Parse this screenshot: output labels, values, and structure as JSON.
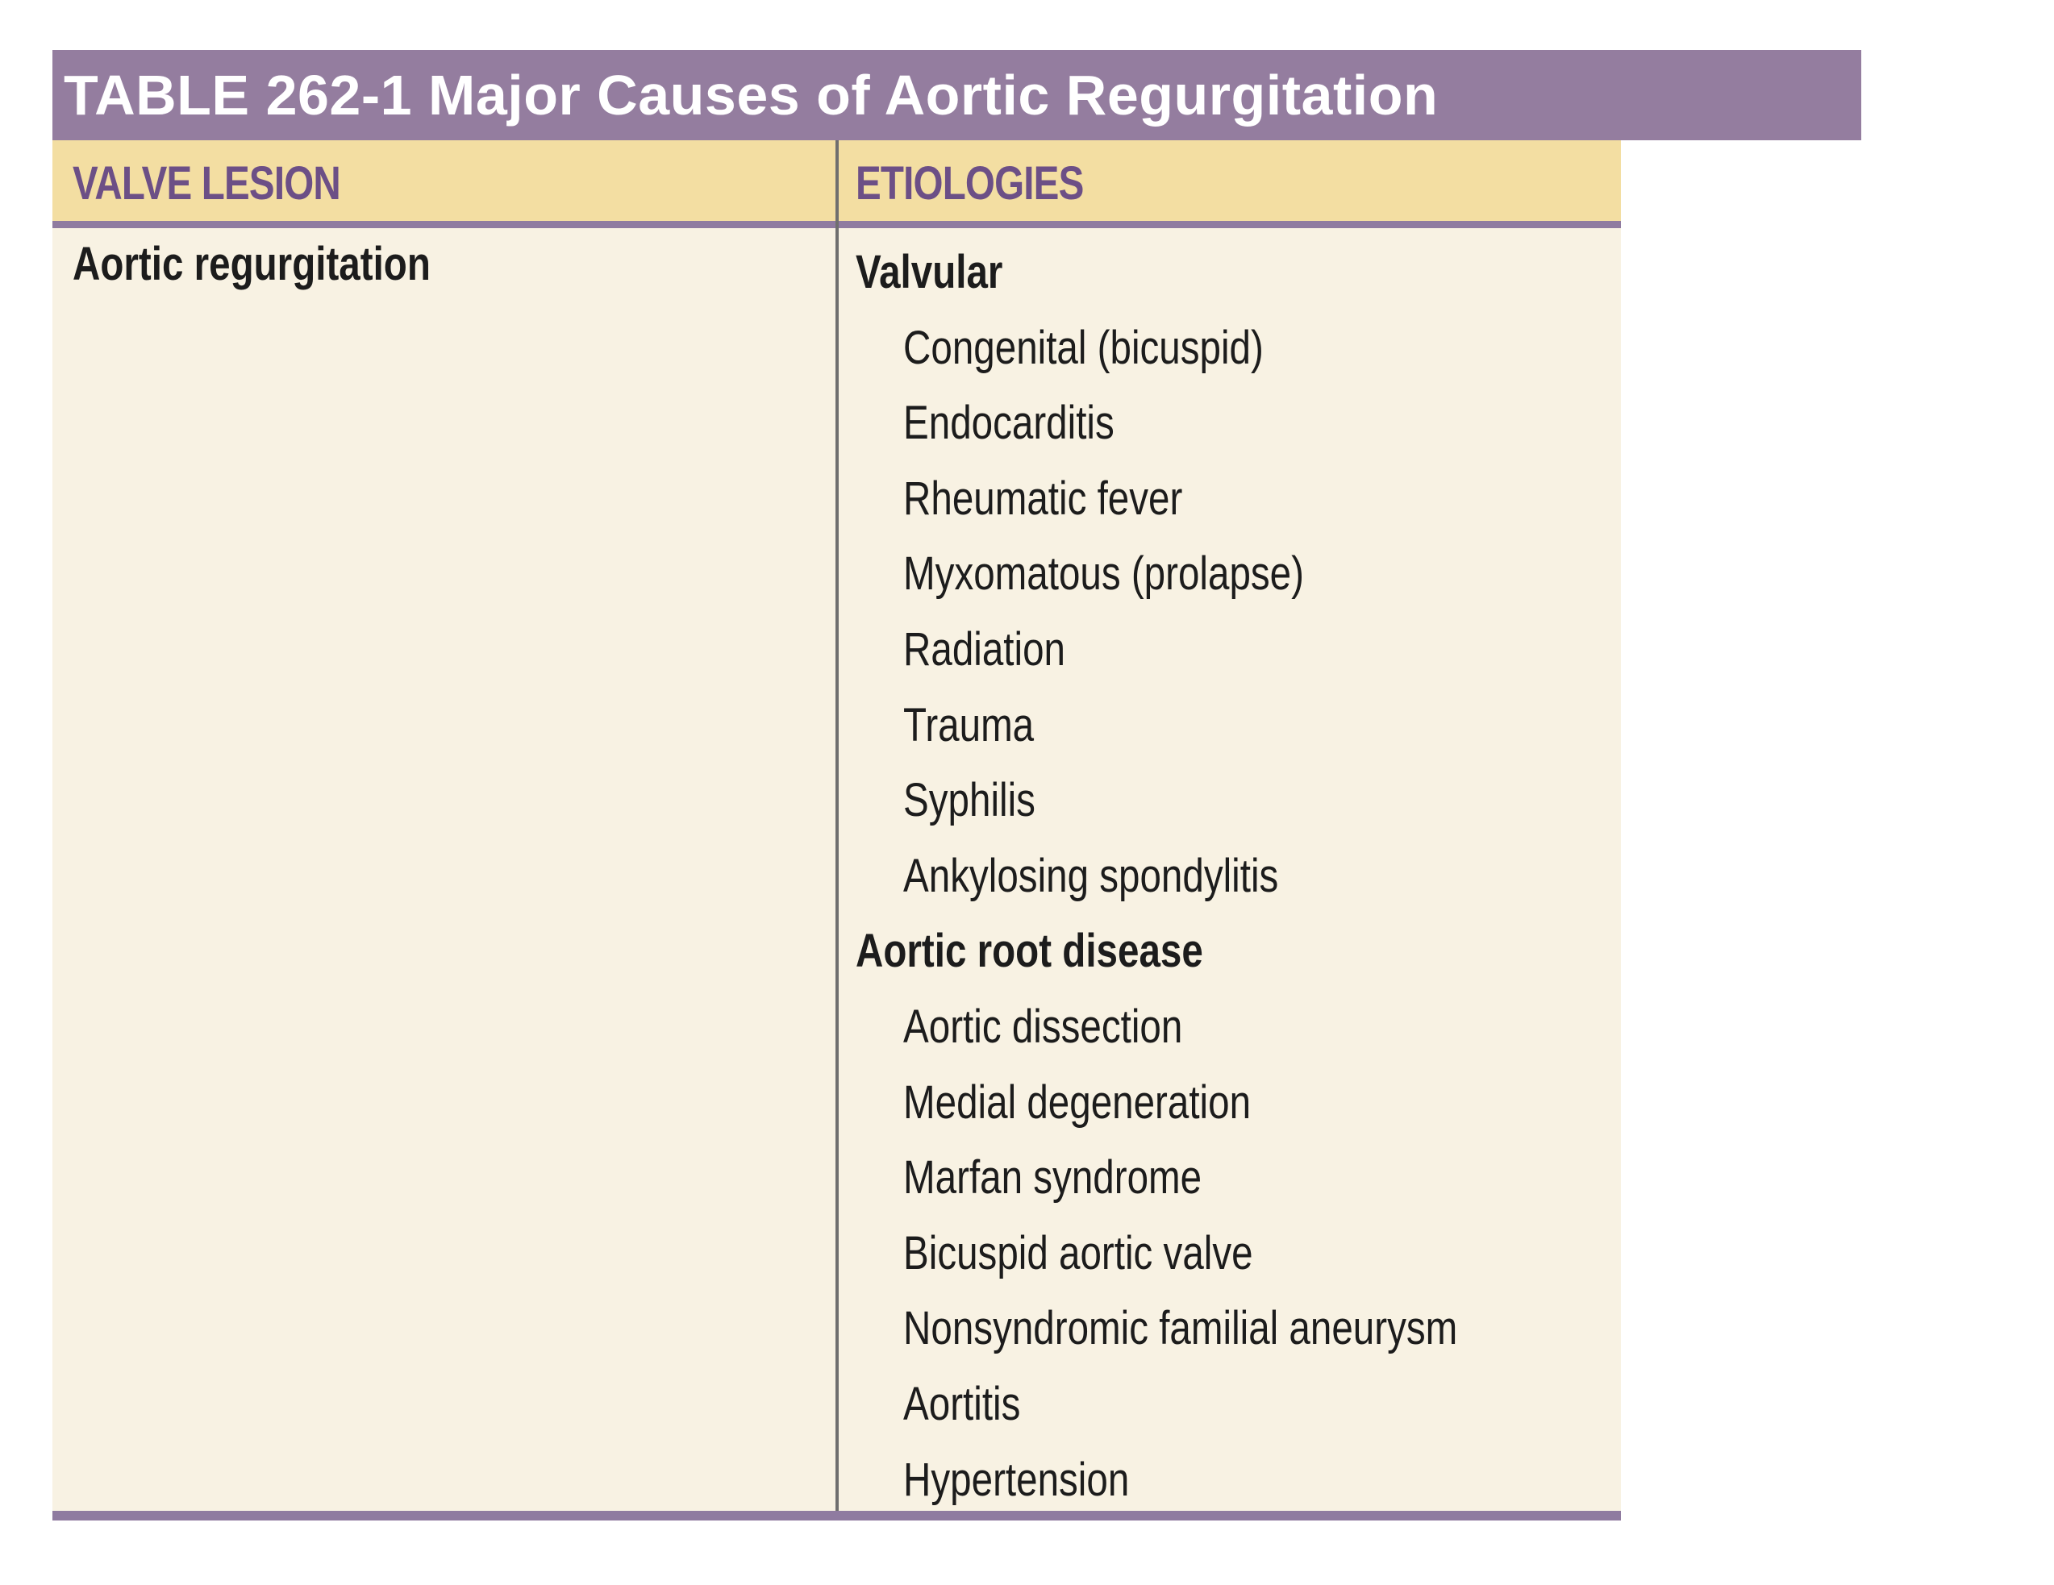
{
  "title": "TABLE 262-1 Major Causes of Aortic Regurgitation",
  "columns": {
    "valve_lesion": "VALVE LESION",
    "etiologies": "ETIOLOGIES"
  },
  "rows": [
    {
      "lesion": "Aortic regurgitation",
      "groups": [
        {
          "heading": "Valvular",
          "items": [
            "Congenital (bicuspid)",
            "Endocarditis",
            "Rheumatic fever",
            "Myxomatous (prolapse)",
            "Radiation",
            "Trauma",
            "Syphilis",
            "Ankylosing spondylitis"
          ]
        },
        {
          "heading": "Aortic root disease",
          "items": [
            "Aortic dissection",
            "Medial degeneration",
            "Marfan syndrome",
            "Bicuspid aortic valve",
            "Nonsyndromic familial aneurysm",
            "Aortitis",
            "Hypertension"
          ]
        }
      ]
    }
  ],
  "colors": {
    "title_bar": "#947d9f",
    "header_fill": "#f3dea2",
    "header_text": "#6c4f86",
    "body_fill": "#f8f2e3",
    "rule": "#8f7ba0"
  }
}
